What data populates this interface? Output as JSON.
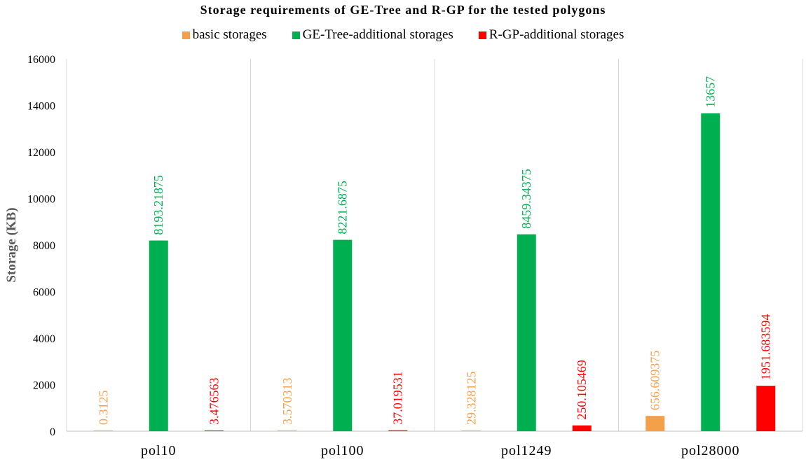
{
  "chart_data": {
    "type": "bar",
    "title": "Storage requirements of GE-Tree and R-GP for the tested polygons",
    "xlabel": "",
    "ylabel": "Storage (KB)",
    "ylim": [
      0,
      16000
    ],
    "yticks": [
      0,
      2000,
      4000,
      6000,
      8000,
      10000,
      12000,
      14000,
      16000
    ],
    "grid": "vertical separators between categories",
    "legend_position": "top",
    "categories": [
      "pol10",
      "pol100",
      "pol1249",
      "pol28000"
    ],
    "series": [
      {
        "name": "basic storages",
        "color": "#F4A04B",
        "values": [
          0.3125,
          3.570313,
          29.328125,
          656.609375
        ],
        "labels": [
          "0.3125",
          "3.570313",
          "29.328125",
          "656.609375"
        ]
      },
      {
        "name": "GE-Tree-additional storages",
        "color": "#00B050",
        "values": [
          8193.21875,
          8221.6875,
          8459.34375,
          13657
        ],
        "labels": [
          "8193.21875",
          "8221.6875",
          "8459.34375",
          "13657"
        ]
      },
      {
        "name": "R-GP-additional storages",
        "color": "#FF0000",
        "values": [
          3.476563,
          37.019531,
          250.105469,
          1951.683594
        ],
        "labels": [
          "3.476563",
          "37.019531",
          "250.105469",
          "1951.683594"
        ]
      }
    ]
  }
}
